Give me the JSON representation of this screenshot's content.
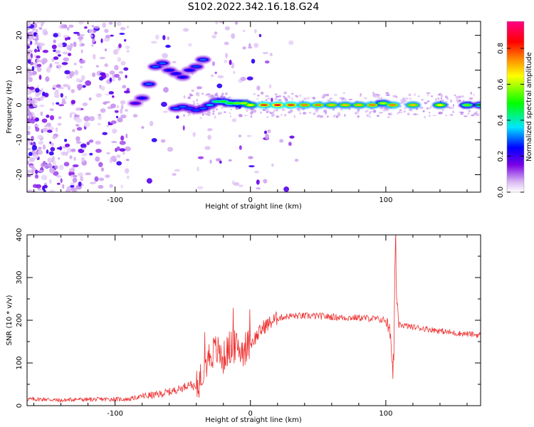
{
  "chart_data": [
    {
      "type": "heatmap",
      "title": "S102.2022.342.16.18.G24",
      "xlabel": "Height of straight line (km)",
      "ylabel": "Frequency (Hz)",
      "xlim": [
        -165,
        170
      ],
      "ylim": [
        -25,
        24
      ],
      "xticks": [
        -100,
        0,
        100
      ],
      "yticks": [
        -20,
        -10,
        0,
        10,
        20
      ],
      "grid": false,
      "colorbar": {
        "label": "Normalized spectral amplitude",
        "range": [
          0.0,
          0.95
        ],
        "ticks": [
          0.0,
          0.2,
          0.4,
          0.6,
          0.8
        ],
        "colormap": [
          "#ffffff",
          "#d9b8f2",
          "#7a00e6",
          "#0000ff",
          "#00e5ff",
          "#00ff00",
          "#ffff00",
          "#ff8800",
          "#ff0000",
          "#ff0088"
        ]
      },
      "ridge": [
        {
          "x": -85,
          "y": 0.5,
          "amp": 0.2
        },
        {
          "x": -80,
          "y": 2.0,
          "amp": 0.25
        },
        {
          "x": -75,
          "y": 6.0,
          "amp": 0.3
        },
        {
          "x": -70,
          "y": 11.0,
          "amp": 0.3
        },
        {
          "x": -65,
          "y": 12.0,
          "amp": 0.3
        },
        {
          "x": -60,
          "y": 10.0,
          "amp": 0.25
        },
        {
          "x": -55,
          "y": 9.0,
          "amp": 0.25
        },
        {
          "x": -50,
          "y": 8.0,
          "amp": 0.25
        },
        {
          "x": -45,
          "y": 10.0,
          "amp": 0.25
        },
        {
          "x": -40,
          "y": 11.0,
          "amp": 0.28
        },
        {
          "x": -35,
          "y": 13.0,
          "amp": 0.3
        },
        {
          "x": -55,
          "y": -1.0,
          "amp": 0.3
        },
        {
          "x": -50,
          "y": -0.5,
          "amp": 0.3
        },
        {
          "x": -45,
          "y": -1.0,
          "amp": 0.28
        },
        {
          "x": -40,
          "y": -1.5,
          "amp": 0.28
        },
        {
          "x": -35,
          "y": -1.0,
          "amp": 0.3
        },
        {
          "x": -30,
          "y": 0.0,
          "amp": 0.35
        },
        {
          "x": -25,
          "y": 1.0,
          "amp": 0.45
        },
        {
          "x": -20,
          "y": 1.0,
          "amp": 0.5
        },
        {
          "x": -15,
          "y": 0.5,
          "amp": 0.5
        },
        {
          "x": -10,
          "y": 0.5,
          "amp": 0.55
        },
        {
          "x": -5,
          "y": 0.5,
          "amp": 0.6
        },
        {
          "x": 0,
          "y": 0.0,
          "amp": 0.65
        },
        {
          "x": 10,
          "y": 0.0,
          "amp": 0.8
        },
        {
          "x": 20,
          "y": 0.0,
          "amp": 0.85
        },
        {
          "x": 30,
          "y": 0.0,
          "amp": 0.8
        },
        {
          "x": 40,
          "y": 0.0,
          "amp": 0.75
        },
        {
          "x": 50,
          "y": 0.0,
          "amp": 0.75
        },
        {
          "x": 60,
          "y": 0.0,
          "amp": 0.7
        },
        {
          "x": 70,
          "y": 0.0,
          "amp": 0.7
        },
        {
          "x": 80,
          "y": 0.0,
          "amp": 0.7
        },
        {
          "x": 90,
          "y": 0.0,
          "amp": 0.75
        },
        {
          "x": 98,
          "y": 0.5,
          "amp": 0.6
        },
        {
          "x": 105,
          "y": 0.0,
          "amp": 0.75
        },
        {
          "x": 120,
          "y": 0.0,
          "amp": 0.7
        },
        {
          "x": 140,
          "y": 0.0,
          "amp": 0.65
        },
        {
          "x": 160,
          "y": 0.0,
          "amp": 0.55
        },
        {
          "x": 170,
          "y": 0.0,
          "amp": 0.5
        }
      ]
    },
    {
      "type": "line",
      "title": "",
      "xlabel": "Height of straight line (km)",
      "ylabel": "SNR (10 * v/v)",
      "xlim": [
        -165,
        170
      ],
      "ylim": [
        0,
        400
      ],
      "xticks": [
        -100,
        0,
        100
      ],
      "yticks": [
        0,
        100,
        200,
        300,
        400
      ],
      "grid": false,
      "series": [
        {
          "color": "#ee3333",
          "x": [
            -165,
            -150,
            -140,
            -130,
            -120,
            -110,
            -100,
            -90,
            -80,
            -70,
            -60,
            -50,
            -45,
            -40,
            -35,
            -30,
            -25,
            -20,
            -15,
            -10,
            -5,
            0,
            5,
            10,
            15,
            20,
            25,
            30,
            40,
            50,
            60,
            70,
            80,
            90,
            100,
            103,
            105,
            106,
            107,
            108,
            110,
            115,
            120,
            130,
            140,
            150,
            160,
            170
          ],
          "y": [
            15,
            15,
            12,
            15,
            14,
            15,
            15,
            15,
            22,
            25,
            32,
            42,
            52,
            40,
            80,
            120,
            130,
            110,
            140,
            135,
            130,
            145,
            165,
            185,
            195,
            205,
            208,
            210,
            210,
            210,
            208,
            206,
            206,
            204,
            200,
            170,
            90,
            150,
            390,
            240,
            190,
            187,
            184,
            180,
            175,
            170,
            168,
            165
          ]
        }
      ]
    }
  ]
}
